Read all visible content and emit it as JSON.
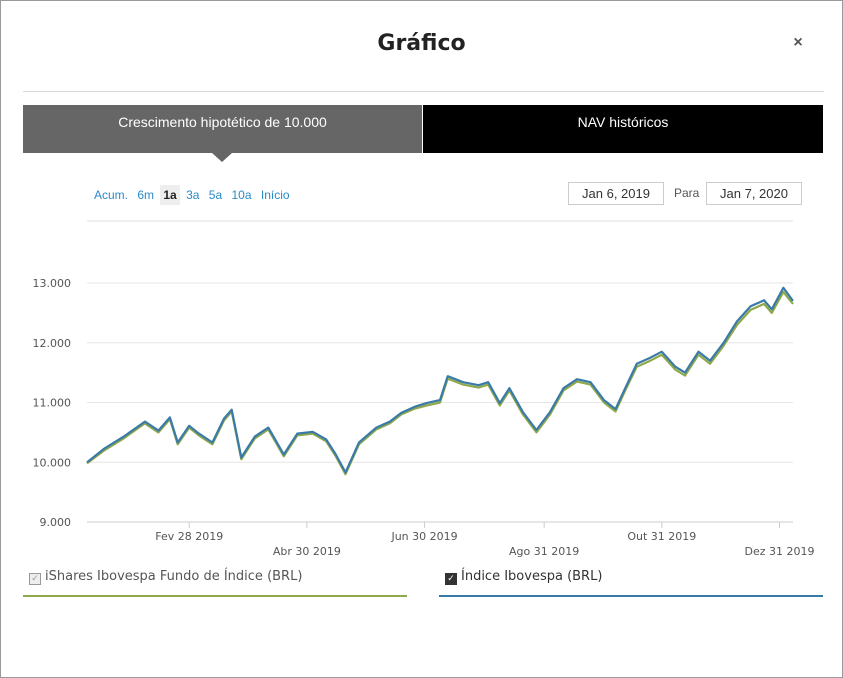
{
  "dialog": {
    "title": "Gráfico",
    "close_icon": "×"
  },
  "tabs": [
    {
      "label": "Crescimento hipotético de 10.000",
      "active": true
    },
    {
      "label": "NAV históricos",
      "active": false
    }
  ],
  "ranges": [
    {
      "label": "Acum.",
      "active": false
    },
    {
      "label": "6m",
      "active": false
    },
    {
      "label": "1a",
      "active": true
    },
    {
      "label": "3a",
      "active": false
    },
    {
      "label": "5a",
      "active": false
    },
    {
      "label": "10a",
      "active": false
    },
    {
      "label": "Início",
      "active": false
    }
  ],
  "date_range": {
    "from": "Jan 6, 2019",
    "separator": "Para",
    "to": "Jan 7, 2020"
  },
  "legend": [
    {
      "label": "iShares Ibovespa Fundo de Índice (BRL)",
      "checked": true,
      "disabled": true,
      "color": "#8fa84a"
    },
    {
      "label": "Índice Ibovespa (BRL)",
      "checked": true,
      "disabled": false,
      "color": "#3a7aa8"
    }
  ],
  "colors": {
    "tab_active": "#666666",
    "tab_inactive": "#000000",
    "link": "#2a8ac6",
    "series1": "#8fa84a",
    "series2": "#3a7aa8"
  },
  "chart_data": {
    "type": "line",
    "x_start": "2019-01-06",
    "x_end": "2020-01-07",
    "ylim": [
      9000,
      13000
    ],
    "yticks": [
      "9.000",
      "10.000",
      "11.000",
      "12.000",
      "13.000"
    ],
    "xticks": [
      {
        "label": "Fev 28 2019",
        "date": "2019-02-28"
      },
      {
        "label": "Abr 30 2019",
        "date": "2019-04-30"
      },
      {
        "label": "Jun 30 2019",
        "date": "2019-06-30"
      },
      {
        "label": "Ago 31 2019",
        "date": "2019-08-31"
      },
      {
        "label": "Out 31 2019",
        "date": "2019-10-31"
      },
      {
        "label": "Dez 31 2019",
        "date": "2019-12-31"
      }
    ],
    "series": [
      {
        "name": "iShares Ibovespa Fundo de Índice (BRL)",
        "color": "#8fa84a",
        "points": [
          [
            "2019-01-06",
            9980
          ],
          [
            "2019-01-15",
            10200
          ],
          [
            "2019-01-25",
            10400
          ],
          [
            "2019-02-05",
            10650
          ],
          [
            "2019-02-12",
            10500
          ],
          [
            "2019-02-18",
            10720
          ],
          [
            "2019-02-22",
            10300
          ],
          [
            "2019-02-28",
            10580
          ],
          [
            "2019-03-05",
            10450
          ],
          [
            "2019-03-12",
            10300
          ],
          [
            "2019-03-18",
            10700
          ],
          [
            "2019-03-22",
            10850
          ],
          [
            "2019-03-27",
            10050
          ],
          [
            "2019-04-03",
            10400
          ],
          [
            "2019-04-10",
            10550
          ],
          [
            "2019-04-18",
            10100
          ],
          [
            "2019-04-25",
            10450
          ],
          [
            "2019-05-03",
            10480
          ],
          [
            "2019-05-10",
            10350
          ],
          [
            "2019-05-15",
            10100
          ],
          [
            "2019-05-20",
            9800
          ],
          [
            "2019-05-27",
            10300
          ],
          [
            "2019-06-05",
            10550
          ],
          [
            "2019-06-12",
            10650
          ],
          [
            "2019-06-18",
            10800
          ],
          [
            "2019-06-25",
            10900
          ],
          [
            "2019-07-01",
            10950
          ],
          [
            "2019-07-08",
            11000
          ],
          [
            "2019-07-12",
            11400
          ],
          [
            "2019-07-20",
            11300
          ],
          [
            "2019-07-28",
            11250
          ],
          [
            "2019-08-02",
            11300
          ],
          [
            "2019-08-08",
            10950
          ],
          [
            "2019-08-13",
            11200
          ],
          [
            "2019-08-20",
            10800
          ],
          [
            "2019-08-27",
            10500
          ],
          [
            "2019-09-03",
            10800
          ],
          [
            "2019-09-10",
            11200
          ],
          [
            "2019-09-17",
            11350
          ],
          [
            "2019-09-24",
            11300
          ],
          [
            "2019-10-01",
            11000
          ],
          [
            "2019-10-07",
            10850
          ],
          [
            "2019-10-12",
            11200
          ],
          [
            "2019-10-18",
            11600
          ],
          [
            "2019-10-25",
            11700
          ],
          [
            "2019-10-31",
            11800
          ],
          [
            "2019-11-07",
            11550
          ],
          [
            "2019-11-12",
            11450
          ],
          [
            "2019-11-19",
            11800
          ],
          [
            "2019-11-25",
            11650
          ],
          [
            "2019-12-02",
            11950
          ],
          [
            "2019-12-09",
            12300
          ],
          [
            "2019-12-16",
            12550
          ],
          [
            "2019-12-23",
            12650
          ],
          [
            "2019-12-27",
            12500
          ],
          [
            "2020-01-02",
            12850
          ],
          [
            "2020-01-07",
            12650
          ]
        ]
      },
      {
        "name": "Índice Ibovespa (BRL)",
        "color": "#3a7aa8",
        "points": [
          [
            "2019-01-06",
            10000
          ],
          [
            "2019-01-15",
            10230
          ],
          [
            "2019-01-25",
            10430
          ],
          [
            "2019-02-05",
            10680
          ],
          [
            "2019-02-12",
            10530
          ],
          [
            "2019-02-18",
            10750
          ],
          [
            "2019-02-22",
            10330
          ],
          [
            "2019-02-28",
            10610
          ],
          [
            "2019-03-05",
            10480
          ],
          [
            "2019-03-12",
            10330
          ],
          [
            "2019-03-18",
            10730
          ],
          [
            "2019-03-22",
            10880
          ],
          [
            "2019-03-27",
            10080
          ],
          [
            "2019-04-03",
            10430
          ],
          [
            "2019-04-10",
            10580
          ],
          [
            "2019-04-18",
            10130
          ],
          [
            "2019-04-25",
            10480
          ],
          [
            "2019-05-03",
            10510
          ],
          [
            "2019-05-10",
            10380
          ],
          [
            "2019-05-15",
            10130
          ],
          [
            "2019-05-20",
            9830
          ],
          [
            "2019-05-27",
            10330
          ],
          [
            "2019-06-05",
            10580
          ],
          [
            "2019-06-12",
            10680
          ],
          [
            "2019-06-18",
            10830
          ],
          [
            "2019-06-25",
            10930
          ],
          [
            "2019-07-01",
            10990
          ],
          [
            "2019-07-08",
            11040
          ],
          [
            "2019-07-12",
            11440
          ],
          [
            "2019-07-20",
            11340
          ],
          [
            "2019-07-28",
            11290
          ],
          [
            "2019-08-02",
            11340
          ],
          [
            "2019-08-08",
            10990
          ],
          [
            "2019-08-13",
            11240
          ],
          [
            "2019-08-20",
            10840
          ],
          [
            "2019-08-27",
            10540
          ],
          [
            "2019-09-03",
            10840
          ],
          [
            "2019-09-10",
            11240
          ],
          [
            "2019-09-17",
            11390
          ],
          [
            "2019-09-24",
            11340
          ],
          [
            "2019-10-01",
            11040
          ],
          [
            "2019-10-07",
            10890
          ],
          [
            "2019-10-12",
            11240
          ],
          [
            "2019-10-18",
            11650
          ],
          [
            "2019-10-25",
            11750
          ],
          [
            "2019-10-31",
            11850
          ],
          [
            "2019-11-07",
            11600
          ],
          [
            "2019-11-12",
            11500
          ],
          [
            "2019-11-19",
            11850
          ],
          [
            "2019-11-25",
            11700
          ],
          [
            "2019-12-02",
            12000
          ],
          [
            "2019-12-09",
            12360
          ],
          [
            "2019-12-16",
            12610
          ],
          [
            "2019-12-23",
            12710
          ],
          [
            "2019-12-27",
            12560
          ],
          [
            "2020-01-02",
            12920
          ],
          [
            "2020-01-07",
            12700
          ]
        ]
      }
    ]
  }
}
